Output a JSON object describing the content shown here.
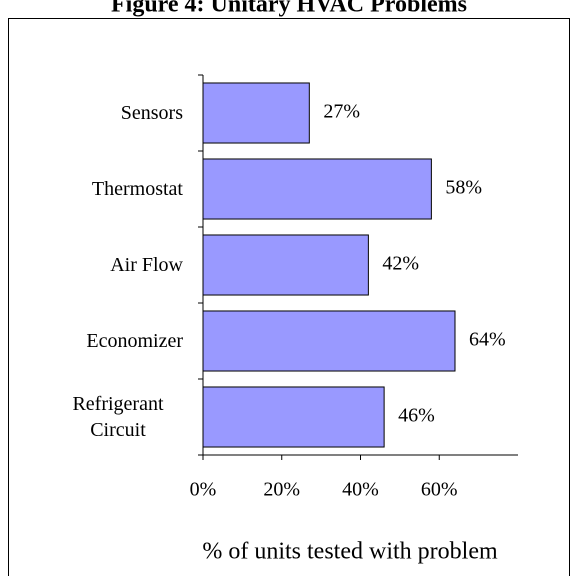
{
  "chart_data": {
    "type": "hbar",
    "title": "Figure 4: Unitary HVAC Problems",
    "xlabel": "% of units tested with problem",
    "categories": [
      "Sensors",
      "Thermostat",
      "Air Flow",
      "Economizer",
      "Refrigerant Circuit"
    ],
    "values": [
      27,
      58,
      42,
      64,
      46
    ],
    "value_labels": [
      "27%",
      "58%",
      "42%",
      "64%",
      "46%"
    ],
    "color": "#9999ff",
    "xlim": [
      0,
      80
    ],
    "xticks": [
      {
        "value": 0,
        "label": "0%"
      },
      {
        "value": 20,
        "label": "20%"
      },
      {
        "value": 40,
        "label": "40%"
      },
      {
        "value": 60,
        "label": "60%"
      }
    ]
  }
}
